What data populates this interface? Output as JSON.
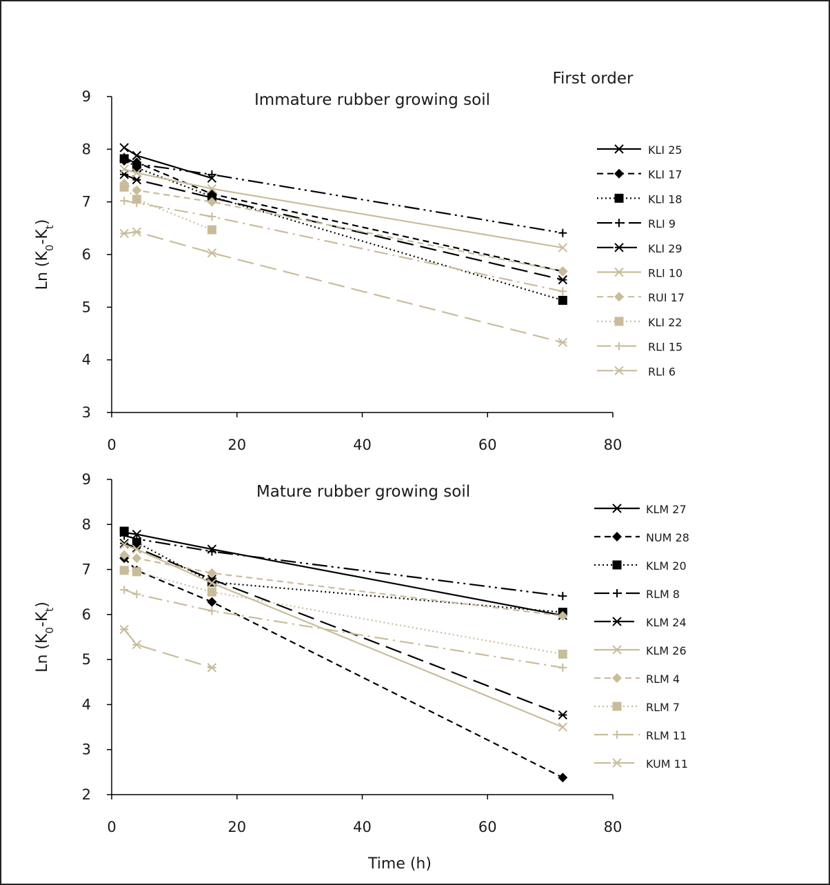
{
  "figure": {
    "heading": "First order",
    "xlabel": "Time (h)"
  },
  "colors": {
    "black": "#000000",
    "tan": "#c8bc9a"
  },
  "chart_data": [
    {
      "type": "line",
      "title": "Immature rubber growing soil",
      "ylabel": {
        "base": "Ln (K",
        "sub1": "0",
        "mid": "-K",
        "sub2": "t",
        "end": ")"
      },
      "xlim": [
        0,
        80
      ],
      "ylim": [
        3,
        9
      ],
      "xticks": [
        0,
        20,
        40,
        60,
        80
      ],
      "yticks": [
        3,
        4,
        5,
        6,
        7,
        8,
        9
      ],
      "legend_position": "right",
      "series": [
        {
          "name": "KLI 25",
          "color": "black",
          "dash": "solid",
          "marker": "x",
          "x": [
            2,
            4,
            16,
            72
          ],
          "y": [
            8.03,
            7.88,
            7.45,
            null
          ]
        },
        {
          "name": "KLI 17",
          "color": "black",
          "dash": "dashed",
          "marker": "diamond",
          "x": [
            2,
            4,
            16,
            72
          ],
          "y": [
            7.78,
            7.75,
            7.15,
            5.68
          ]
        },
        {
          "name": "KLI 18",
          "color": "black",
          "dash": "dotted",
          "marker": "square",
          "x": [
            2,
            4,
            16,
            72
          ],
          "y": [
            7.82,
            7.65,
            7.1,
            5.13
          ]
        },
        {
          "name": "RLI 9",
          "color": "black",
          "dash": "dashdotdot",
          "marker": "plus",
          "x": [
            2,
            4,
            16,
            72
          ],
          "y": [
            7.85,
            7.72,
            7.52,
            6.41
          ]
        },
        {
          "name": "KLI 29",
          "color": "black",
          "dash": "longdash",
          "marker": "star",
          "x": [
            2,
            4,
            16,
            72
          ],
          "y": [
            7.52,
            7.42,
            7.08,
            5.52
          ]
        },
        {
          "name": "RLI 10",
          "color": "tan",
          "dash": "solid",
          "marker": "x",
          "x": [
            2,
            4,
            16,
            72
          ],
          "y": [
            7.62,
            7.55,
            7.25,
            6.13
          ]
        },
        {
          "name": "RUI 17",
          "color": "tan",
          "dash": "dashed",
          "marker": "diamond",
          "x": [
            2,
            4,
            16,
            72
          ],
          "y": [
            7.35,
            7.22,
            7.0,
            5.68
          ]
        },
        {
          "name": "KLI 22",
          "color": "tan",
          "dash": "dotted",
          "marker": "square",
          "x": [
            2,
            4,
            16,
            72
          ],
          "y": [
            7.28,
            7.05,
            6.47,
            null
          ]
        },
        {
          "name": "RLI 15",
          "color": "tan",
          "dash": "dashdot",
          "marker": "plus",
          "x": [
            2,
            4,
            16,
            72
          ],
          "y": [
            7.02,
            6.98,
            6.72,
            5.3
          ]
        },
        {
          "name": "RLI 6",
          "color": "tan",
          "dash": "longdash",
          "marker": "star",
          "x": [
            2,
            4,
            16,
            72
          ],
          "y": [
            6.4,
            6.43,
            6.03,
            4.33
          ]
        }
      ]
    },
    {
      "type": "line",
      "title": "Mature rubber growing soil",
      "ylabel": {
        "base": "Ln (K",
        "sub1": "0",
        "mid": "-K",
        "sub2": "t",
        "end": ")"
      },
      "xlim": [
        0,
        80
      ],
      "ylim": [
        2,
        9
      ],
      "xticks": [
        0,
        20,
        40,
        60,
        80
      ],
      "yticks": [
        2,
        3,
        4,
        5,
        6,
        7,
        8,
        9
      ],
      "legend_position": "right",
      "series": [
        {
          "name": "KLM 27",
          "color": "black",
          "dash": "solid",
          "marker": "x",
          "x": [
            2,
            4,
            16,
            72
          ],
          "y": [
            7.82,
            7.78,
            7.45,
            5.98
          ]
        },
        {
          "name": "NUM 28",
          "color": "black",
          "dash": "dashed",
          "marker": "diamond",
          "x": [
            2,
            4,
            16,
            72
          ],
          "y": [
            7.25,
            6.98,
            6.28,
            2.38
          ]
        },
        {
          "name": "KLM 20",
          "color": "black",
          "dash": "dotted",
          "marker": "square",
          "x": [
            2,
            4,
            16,
            72
          ],
          "y": [
            7.85,
            7.6,
            6.72,
            6.05
          ]
        },
        {
          "name": "RLM 8",
          "color": "black",
          "dash": "dashdotdot",
          "marker": "plus",
          "x": [
            2,
            4,
            16,
            72
          ],
          "y": [
            7.75,
            7.68,
            7.4,
            6.41
          ]
        },
        {
          "name": "KLM 24",
          "color": "black",
          "dash": "longdash",
          "marker": "star",
          "x": [
            2,
            4,
            16,
            72
          ],
          "y": [
            7.58,
            7.48,
            6.78,
            3.77
          ]
        },
        {
          "name": "KLM 26",
          "color": "tan",
          "dash": "solid",
          "marker": "x",
          "x": [
            2,
            4,
            16,
            72
          ],
          "y": [
            7.55,
            7.45,
            6.7,
            3.5
          ]
        },
        {
          "name": "RLM 4",
          "color": "tan",
          "dash": "dashed",
          "marker": "diamond",
          "x": [
            2,
            4,
            16,
            72
          ],
          "y": [
            7.32,
            7.25,
            6.92,
            5.97
          ]
        },
        {
          "name": "RLM 7",
          "color": "tan",
          "dash": "dotted",
          "marker": "square",
          "x": [
            2,
            4,
            16,
            72
          ],
          "y": [
            6.98,
            6.95,
            6.5,
            5.12
          ]
        },
        {
          "name": "RLM 11",
          "color": "tan",
          "dash": "dashdot",
          "marker": "plus",
          "x": [
            2,
            4,
            16,
            72
          ],
          "y": [
            6.55,
            6.45,
            6.08,
            4.82
          ]
        },
        {
          "name": "KUM 11",
          "color": "tan",
          "dash": "longdash",
          "marker": "star",
          "x": [
            2,
            4,
            16,
            72
          ],
          "y": [
            5.67,
            5.33,
            4.82,
            null
          ]
        }
      ]
    }
  ]
}
